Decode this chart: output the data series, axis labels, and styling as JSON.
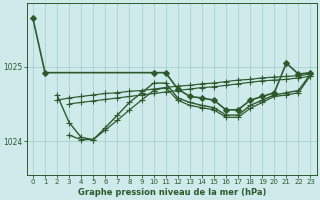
{
  "xlabel": "Graphe pression niveau de la mer (hPa)",
  "bg_color": "#ceeaea",
  "grid_color": "#a0cccc",
  "line_color": "#2d5a2d",
  "xlim": [
    -0.5,
    23.5
  ],
  "ylim": [
    1023.55,
    1025.85
  ],
  "yticks": [
    1024,
    1025
  ],
  "xticks": [
    0,
    1,
    2,
    3,
    4,
    5,
    6,
    7,
    8,
    9,
    10,
    11,
    12,
    13,
    14,
    15,
    16,
    17,
    18,
    19,
    20,
    21,
    22,
    23
  ],
  "series": [
    {
      "x": [
        0,
        1,
        10,
        11,
        12,
        13,
        14,
        15,
        16,
        17,
        18,
        19,
        20,
        21,
        22,
        23
      ],
      "y": [
        1025.65,
        1024.92,
        1024.92,
        1024.92,
        1024.7,
        1024.6,
        1024.58,
        1024.55,
        1024.42,
        1024.42,
        1024.55,
        1024.6,
        1024.65,
        1025.05,
        1024.9,
        1024.92
      ],
      "marker": "D",
      "markersize": 3,
      "linewidth": 1.2
    },
    {
      "x": [
        2,
        3,
        4,
        5,
        6,
        7,
        8,
        9,
        10,
        11,
        12,
        13,
        14,
        15,
        16,
        17,
        18,
        19,
        20,
        21,
        22,
        23
      ],
      "y": [
        1024.62,
        1024.25,
        1024.05,
        1024.02,
        1024.18,
        1024.35,
        1024.52,
        1024.65,
        1024.78,
        1024.78,
        1024.58,
        1024.52,
        1024.48,
        1024.45,
        1024.35,
        1024.35,
        1024.48,
        1024.55,
        1024.62,
        1024.65,
        1024.68,
        1024.9
      ],
      "marker": "+",
      "markersize": 5,
      "linewidth": 1.0
    },
    {
      "x": [
        3,
        4,
        5,
        6,
        7,
        8,
        9,
        10,
        11,
        12,
        13,
        14,
        15,
        16,
        17,
        18,
        19,
        20,
        21,
        22,
        23
      ],
      "y": [
        1024.08,
        1024.02,
        1024.02,
        1024.15,
        1024.28,
        1024.42,
        1024.55,
        1024.68,
        1024.72,
        1024.55,
        1024.48,
        1024.45,
        1024.42,
        1024.32,
        1024.32,
        1024.44,
        1024.52,
        1024.6,
        1024.62,
        1024.65,
        1024.88
      ],
      "marker": "+",
      "markersize": 4,
      "linewidth": 0.9
    },
    {
      "x": [
        2,
        3,
        4,
        5,
        6,
        7,
        8,
        9,
        10,
        11,
        12,
        13,
        14,
        15,
        16,
        17,
        18,
        19,
        20,
        21,
        22,
        23
      ],
      "y": [
        1024.55,
        1024.58,
        1024.6,
        1024.62,
        1024.64,
        1024.65,
        1024.67,
        1024.68,
        1024.7,
        1024.72,
        1024.74,
        1024.75,
        1024.77,
        1024.78,
        1024.8,
        1024.82,
        1024.83,
        1024.85,
        1024.86,
        1024.87,
        1024.88,
        1024.9
      ],
      "marker": "+",
      "markersize": 4,
      "linewidth": 0.85
    },
    {
      "x": [
        3,
        4,
        5,
        6,
        7,
        8,
        9,
        10,
        11,
        12,
        13,
        14,
        15,
        16,
        17,
        18,
        19,
        20,
        21,
        22,
        23
      ],
      "y": [
        1024.5,
        1024.52,
        1024.54,
        1024.56,
        1024.58,
        1024.6,
        1024.62,
        1024.64,
        1024.66,
        1024.68,
        1024.7,
        1024.72,
        1024.73,
        1024.75,
        1024.77,
        1024.79,
        1024.81,
        1024.82,
        1024.83,
        1024.85,
        1024.87
      ],
      "marker": "+",
      "markersize": 4,
      "linewidth": 0.85
    }
  ]
}
